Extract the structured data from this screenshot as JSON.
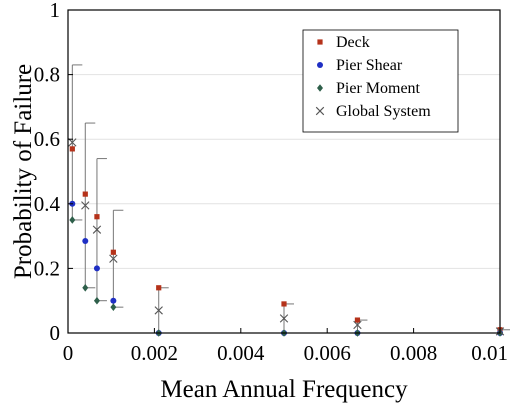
{
  "chart_data": {
    "type": "scatter",
    "xlabel": "Mean Annual Frequency",
    "ylabel": "Probability of Failure",
    "xlim": [
      0,
      0.01
    ],
    "ylim": [
      0,
      1
    ],
    "x_ticks": [
      "0",
      "0.002",
      "0.004",
      "0.006",
      "0.008",
      "0.01"
    ],
    "y_ticks": [
      "0",
      "0.2",
      "0.4",
      "0.6",
      "0.8",
      "1"
    ],
    "grid": "horizontal",
    "legend_position": "top-right",
    "series": [
      {
        "name": "Deck",
        "marker": "square",
        "color": "#b5321a",
        "points": [
          {
            "x": 0.0001,
            "y": 0.57
          },
          {
            "x": 0.0004,
            "y": 0.43
          },
          {
            "x": 0.00067,
            "y": 0.36
          },
          {
            "x": 0.00105,
            "y": 0.25
          },
          {
            "x": 0.0021,
            "y": 0.14
          },
          {
            "x": 0.005,
            "y": 0.09
          },
          {
            "x": 0.0067,
            "y": 0.04
          },
          {
            "x": 0.01,
            "y": 0.01
          }
        ]
      },
      {
        "name": "Pier Shear",
        "marker": "circle",
        "color": "#1f2fc4",
        "points": [
          {
            "x": 0.0001,
            "y": 0.4
          },
          {
            "x": 0.0004,
            "y": 0.285
          },
          {
            "x": 0.00067,
            "y": 0.2
          },
          {
            "x": 0.00105,
            "y": 0.1
          },
          {
            "x": 0.0021,
            "y": 0.0
          },
          {
            "x": 0.005,
            "y": 0.0
          },
          {
            "x": 0.0067,
            "y": 0.0
          },
          {
            "x": 0.01,
            "y": 0.0
          }
        ]
      },
      {
        "name": "Pier Moment",
        "marker": "diamond",
        "color": "#2e5f4a",
        "points": [
          {
            "x": 0.0001,
            "y": 0.35
          },
          {
            "x": 0.0004,
            "y": 0.14
          },
          {
            "x": 0.00067,
            "y": 0.1
          },
          {
            "x": 0.00105,
            "y": 0.08
          },
          {
            "x": 0.0021,
            "y": 0.0
          },
          {
            "x": 0.005,
            "y": 0.0
          },
          {
            "x": 0.0067,
            "y": 0.0
          },
          {
            "x": 0.01,
            "y": 0.0
          }
        ]
      },
      {
        "name": "Global System",
        "marker": "x",
        "color": "#555555",
        "points": [
          {
            "x": 0.0001,
            "y": 0.59,
            "err_low": 0.35,
            "err_high": 0.83
          },
          {
            "x": 0.0004,
            "y": 0.395,
            "err_low": 0.14,
            "err_high": 0.65
          },
          {
            "x": 0.00067,
            "y": 0.32,
            "err_low": 0.1,
            "err_high": 0.54
          },
          {
            "x": 0.00105,
            "y": 0.23,
            "err_low": 0.08,
            "err_high": 0.38
          },
          {
            "x": 0.0021,
            "y": 0.07,
            "err_low": 0.0,
            "err_high": 0.14
          },
          {
            "x": 0.005,
            "y": 0.045,
            "err_low": 0.0,
            "err_high": 0.09
          },
          {
            "x": 0.0067,
            "y": 0.025,
            "err_low": 0.0,
            "err_high": 0.04
          },
          {
            "x": 0.01,
            "y": 0.005,
            "err_low": 0.0,
            "err_high": 0.01
          }
        ]
      }
    ]
  }
}
